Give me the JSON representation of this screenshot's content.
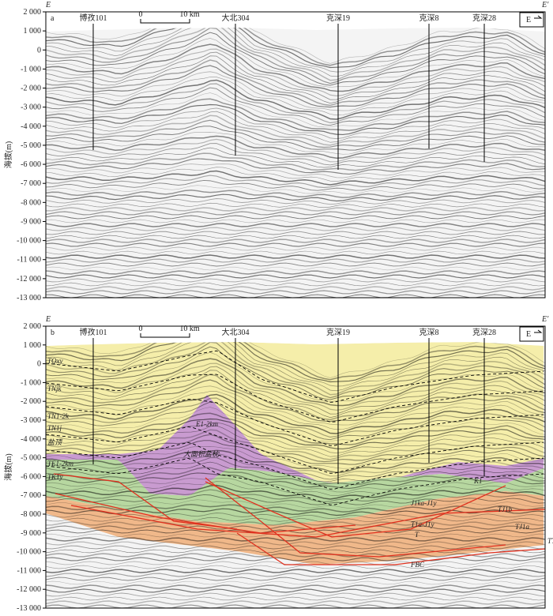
{
  "panels": [
    {
      "label": "a",
      "corner_left": "E",
      "corner_right": "E′",
      "scale_start": "0",
      "scale_end": "10 km",
      "direction": "E",
      "y_axis_title": "海拔(m)",
      "yticks": [
        "2 000",
        "1 000",
        "0",
        "-1 000",
        "-2 000",
        "-3 000",
        "-4 000",
        "-5 000",
        "-6 000",
        "-7 000",
        "-8 000",
        "-9 000",
        "-10 000",
        "-11 000",
        "-12 000",
        "-13 000"
      ],
      "wells": [
        "博孜101",
        "大北304",
        "克深19",
        "克深8",
        "克深28"
      ]
    },
    {
      "label": "b",
      "corner_left": "E",
      "corner_right": "E′",
      "scale_start": "0",
      "scale_end": "10 km",
      "direction": "E",
      "y_axis_title": "海拔(m)",
      "yticks": [
        "2 000",
        "1 000",
        "0",
        "-1 000",
        "-2 000",
        "-3 000",
        "-4 000",
        "-5 000",
        "-6 000",
        "-7 000",
        "-8 000",
        "-9 000",
        "-10 000",
        "-11 000",
        "-12 000",
        "-13 000"
      ],
      "wells": [
        "博孜101",
        "大北304",
        "克深19",
        "克深8",
        "克深28"
      ],
      "left_labels": [
        "TQxy",
        "TNjk",
        "TN1-2k",
        "TN1j",
        "盐顶",
        "TE1-2km",
        "TK1y"
      ],
      "right_labels": [
        "TJ1b",
        "TJ1a",
        "TT"
      ],
      "inner_labels": [
        "E1-2km",
        "大面积盐枕",
        "K1",
        "J1ka-J1y",
        "T1a-J1y",
        "T",
        "FBC"
      ]
    }
  ]
}
